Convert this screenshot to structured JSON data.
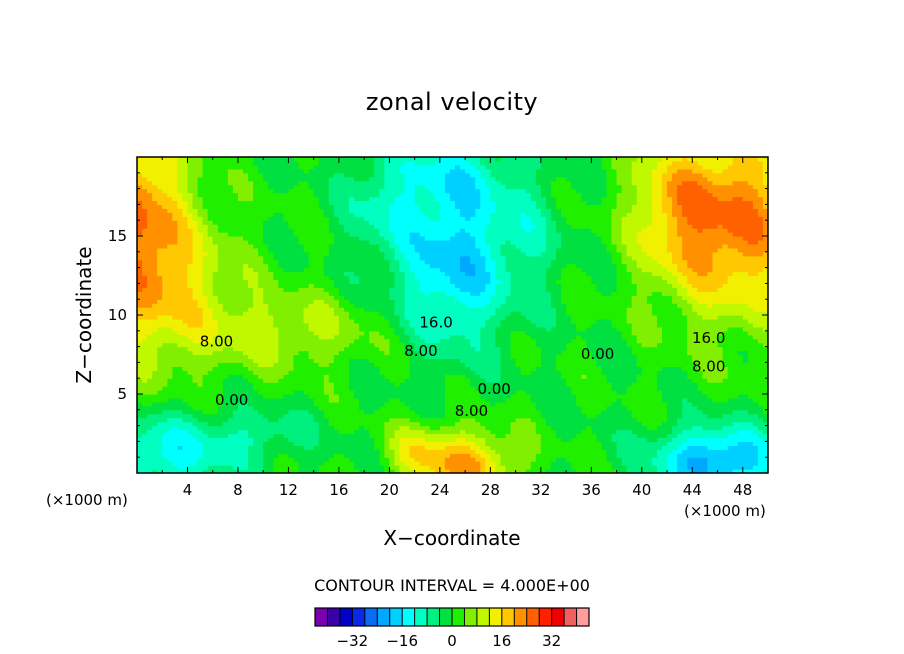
{
  "chart_data": {
    "type": "heatmap",
    "title": "zonal velocity",
    "xlabel": "X−coordinate",
    "ylabel": "Z−coordinate",
    "x_unit_label": "(×1000 m)",
    "x_ticks": [
      "4",
      "8",
      "12",
      "16",
      "20",
      "24",
      "28",
      "32",
      "36",
      "40",
      "44",
      "48"
    ],
    "y_ticks": [
      "5",
      "10",
      "15"
    ],
    "xlim": [
      0,
      50
    ],
    "ylim": [
      0,
      20
    ],
    "grid": false,
    "legend": "bottom",
    "contour_interval_text": "CONTOUR INTERVAL = 4.000E+00",
    "contour_labels": [
      {
        "text": "8.00",
        "x": 6.3,
        "z": 8.3
      },
      {
        "text": "0.00",
        "x": 7.5,
        "z": 4.6
      },
      {
        "text": "16.0",
        "x": 23.7,
        "z": 9.5
      },
      {
        "text": "8.00",
        "x": 22.5,
        "z": 7.7
      },
      {
        "text": "0.00",
        "x": 28.3,
        "z": 5.3
      },
      {
        "text": "8.00",
        "x": 26.5,
        "z": 3.9
      },
      {
        "text": "0.00",
        "x": 36.5,
        "z": 7.5
      },
      {
        "text": "16.0",
        "x": 45.3,
        "z": 8.5
      },
      {
        "text": "8.00",
        "x": 45.3,
        "z": 6.7
      }
    ],
    "field_description_points": [
      {
        "x": 1,
        "z": 16,
        "u": 20
      },
      {
        "x": 46,
        "z": 16,
        "u": 24
      },
      {
        "x": 26,
        "z": 12,
        "u": -16
      },
      {
        "x": 26,
        "z": 1,
        "u": 20
      },
      {
        "x": 46,
        "z": 1,
        "u": -20
      },
      {
        "x": 2,
        "z": 1,
        "u": -12
      },
      {
        "x": 15,
        "z": 5,
        "u": 0
      }
    ],
    "colorbar": {
      "colors": [
        "#7a00b0",
        "#3a00a8",
        "#0000c8",
        "#0a28e8",
        "#0a6cf0",
        "#00a8ff",
        "#00d0ff",
        "#00ffff",
        "#00ffc0",
        "#00f080",
        "#00e040",
        "#20f000",
        "#80f000",
        "#c0f800",
        "#f0f000",
        "#ffc800",
        "#ff9000",
        "#ff6000",
        "#ff2000",
        "#f00000",
        "#f06060",
        "#ff9c9c"
      ],
      "tick_labels": [
        "−32",
        "−16",
        "0",
        "16",
        "32"
      ],
      "tick_values": [
        -32,
        -16,
        0,
        16,
        32
      ],
      "range": [
        -44,
        44
      ],
      "step": 4
    }
  }
}
